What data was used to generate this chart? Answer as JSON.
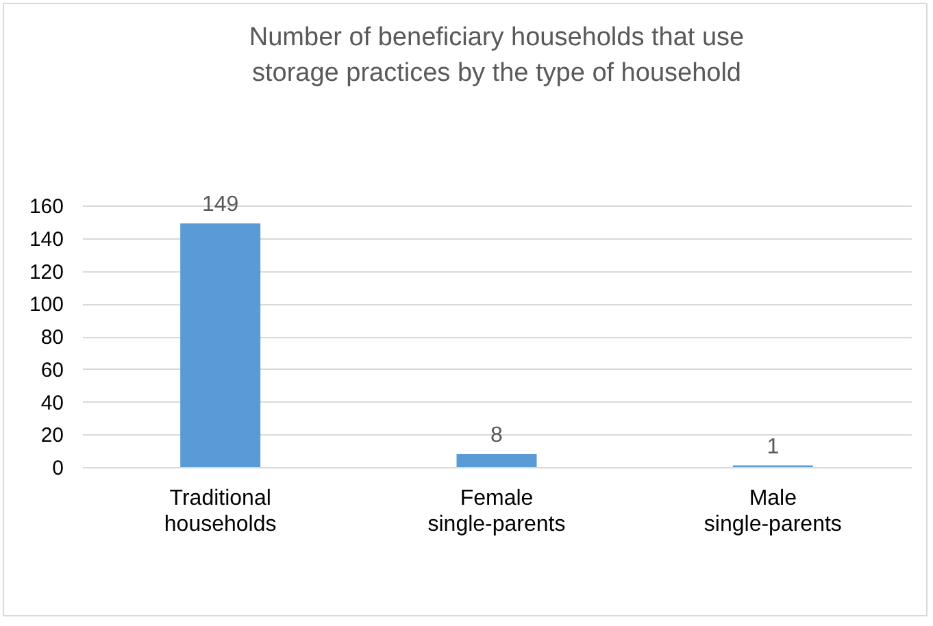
{
  "chart_data": {
    "type": "bar",
    "title": "Number of beneficiary households that use storage practices by the type of household",
    "categories": [
      "Traditional households",
      "Female single-parents",
      "Male single-parents"
    ],
    "values": [
      149,
      8,
      1
    ],
    "color": "#5b9bd5",
    "ylim": [
      0,
      160
    ],
    "yticks": [
      0,
      20,
      40,
      60,
      80,
      100,
      120,
      140,
      160
    ],
    "grid": "y",
    "data_labels": true
  }
}
